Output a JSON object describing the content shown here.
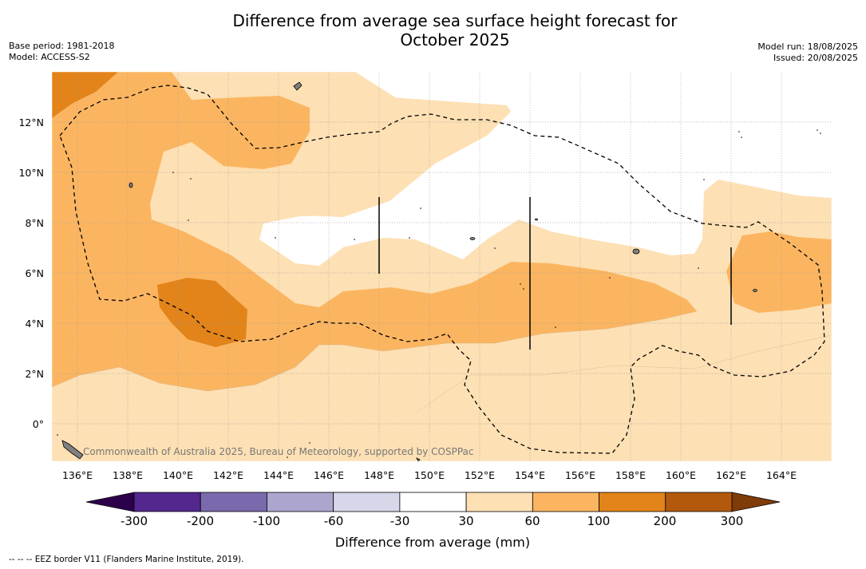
{
  "title_line1": "Difference from average sea surface height forecast for",
  "title_line2": "October 2025",
  "meta_left": [
    "Base period: 1981-2018",
    "Model: ACCESS-S2"
  ],
  "meta_right": [
    "Model run: 18/08/2025",
    "Issued: 20/08/2025"
  ],
  "copyright": "Commonwealth of Australia 2025, Bureau of Meteorology, supported by COSPPac",
  "footnote": "--  --  -- EEZ border V11 (Flanders Marine Institute, 2019).",
  "map": {
    "lon_range": [
      135,
      166
    ],
    "lat_range": [
      -1.5,
      14
    ],
    "lon_ticks": [
      "136°E",
      "138°E",
      "140°E",
      "142°E",
      "144°E",
      "146°E",
      "148°E",
      "150°E",
      "152°E",
      "154°E",
      "156°E",
      "158°E",
      "160°E",
      "162°E",
      "164°E"
    ],
    "lat_ticks": [
      "0°",
      "2°N",
      "4°N",
      "6°N",
      "8°N",
      "10°N",
      "12°N"
    ]
  },
  "colorbar": {
    "label": "Difference from average (mm)",
    "tick_labels": [
      "-300",
      "-200",
      "-100",
      "-60",
      "-30",
      "30",
      "60",
      "100",
      "200",
      "300"
    ],
    "colors": [
      "#54278f",
      "#7a6aad",
      "#aca6cf",
      "#d7d7ea",
      "#ffffff",
      "#fde0b4",
      "#fbb561",
      "#e2841a",
      "#b3590d"
    ],
    "under_color": "#2d004b",
    "over_color": "#7f3b08"
  }
}
